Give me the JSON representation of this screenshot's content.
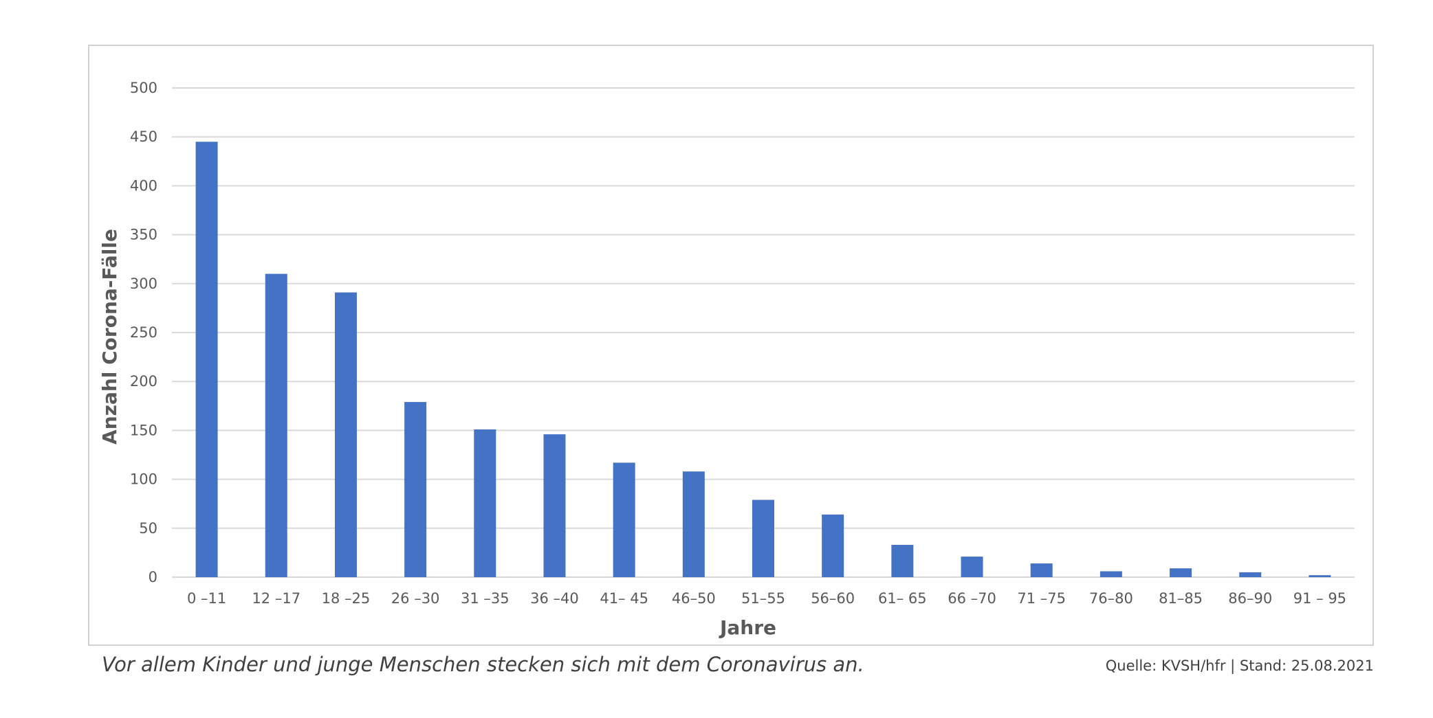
{
  "caption": "Vor allem Kinder und junge Menschen stecken sich mit dem Coronavirus an.",
  "source": "Quelle: KVSH/hfr | Stand: 25.08.2021",
  "colors": {
    "bar": "#4472c4",
    "grid": "#d9d9d9",
    "text": "#595959"
  },
  "chart_data": {
    "type": "bar",
    "title": "",
    "xlabel": "Jahre",
    "ylabel": "Anzahl Corona-Fälle",
    "ylim": [
      0,
      500
    ],
    "yticks": [
      0,
      50,
      100,
      150,
      200,
      250,
      300,
      350,
      400,
      450,
      500
    ],
    "grid": true,
    "categories": [
      "0 –11",
      "12 –17",
      "18 –25",
      "26 –30",
      "31 –35",
      "36 –40",
      "41– 45",
      "46–50",
      "51–55",
      "56–60",
      "61– 65",
      "66 –70",
      "71 –75",
      "76–80",
      "81–85",
      "86–90",
      "91 – 95"
    ],
    "values": [
      445,
      310,
      291,
      179,
      151,
      146,
      117,
      108,
      79,
      64,
      33,
      21,
      14,
      6,
      9,
      5,
      2
    ]
  }
}
